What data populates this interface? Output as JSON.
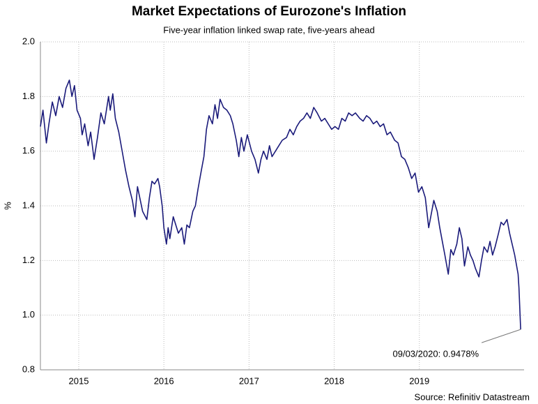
{
  "chart_data": {
    "type": "line",
    "title": "Market Expectations of Eurozone's Inflation",
    "subtitle": "Five-year inflation linked swap rate, five-years ahead",
    "y_label": "%",
    "source": "Source: Refinitiv Datastream",
    "annotation": "09/03/2020: 0.9478%",
    "grid": true,
    "xlim": [
      2014.55,
      2020.23
    ],
    "xticks": [
      2015,
      2016,
      2017,
      2018,
      2019
    ],
    "ylim": [
      0.8,
      2.0
    ],
    "yticks": [
      0.8,
      {
        "value": 1.0,
        "label": "1.0"
      },
      1.2,
      1.4,
      1.6,
      1.8,
      {
        "value": 2.0,
        "label": "2.0"
      }
    ],
    "series": [
      {
        "color": "#1a1a7a",
        "x": [
          2014.55,
          2014.58,
          2014.62,
          2014.65,
          2014.69,
          2014.73,
          2014.77,
          2014.81,
          2014.85,
          2014.89,
          2014.92,
          2014.95,
          2014.98,
          2015.02,
          2015.04,
          2015.07,
          2015.11,
          2015.14,
          2015.18,
          2015.22,
          2015.26,
          2015.3,
          2015.35,
          2015.37,
          2015.4,
          2015.43,
          2015.47,
          2015.51,
          2015.55,
          2015.59,
          2015.63,
          2015.66,
          2015.69,
          2015.71,
          2015.75,
          2015.8,
          2015.83,
          2015.86,
          2015.89,
          2015.93,
          2015.95,
          2015.98,
          2016.0,
          2016.03,
          2016.05,
          2016.07,
          2016.11,
          2016.14,
          2016.17,
          2016.21,
          2016.24,
          2016.27,
          2016.3,
          2016.34,
          2016.37,
          2016.4,
          2016.44,
          2016.47,
          2016.5,
          2016.53,
          2016.57,
          2016.6,
          2016.63,
          2016.66,
          2016.7,
          2016.74,
          2016.78,
          2016.81,
          2016.85,
          2016.88,
          2016.91,
          2016.94,
          2016.98,
          2017.03,
          2017.07,
          2017.11,
          2017.14,
          2017.17,
          2017.21,
          2017.24,
          2017.27,
          2017.31,
          2017.35,
          2017.39,
          2017.44,
          2017.48,
          2017.52,
          2017.56,
          2017.6,
          2017.64,
          2017.68,
          2017.72,
          2017.76,
          2017.8,
          2017.85,
          2017.89,
          2017.93,
          2017.97,
          2018.01,
          2018.05,
          2018.09,
          2018.13,
          2018.17,
          2018.21,
          2018.25,
          2018.3,
          2018.34,
          2018.38,
          2018.42,
          2018.46,
          2018.5,
          2018.54,
          2018.58,
          2018.62,
          2018.66,
          2018.71,
          2018.75,
          2018.79,
          2018.83,
          2018.87,
          2018.91,
          2018.95,
          2018.99,
          2019.03,
          2019.07,
          2019.11,
          2019.14,
          2019.17,
          2019.21,
          2019.24,
          2019.27,
          2019.3,
          2019.34,
          2019.37,
          2019.4,
          2019.44,
          2019.47,
          2019.5,
          2019.53,
          2019.57,
          2019.6,
          2019.63,
          2019.66,
          2019.7,
          2019.73,
          2019.76,
          2019.8,
          2019.83,
          2019.86,
          2019.89,
          2019.93,
          2019.96,
          2019.99,
          2020.03,
          2020.06,
          2020.09,
          2020.12,
          2020.16,
          2020.17,
          2020.19
        ],
        "values": [
          1.69,
          1.75,
          1.63,
          1.7,
          1.78,
          1.73,
          1.8,
          1.76,
          1.83,
          1.86,
          1.8,
          1.84,
          1.75,
          1.72,
          1.66,
          1.7,
          1.62,
          1.67,
          1.57,
          1.65,
          1.74,
          1.7,
          1.8,
          1.75,
          1.81,
          1.72,
          1.67,
          1.6,
          1.53,
          1.47,
          1.42,
          1.36,
          1.47,
          1.44,
          1.38,
          1.35,
          1.43,
          1.49,
          1.48,
          1.5,
          1.47,
          1.4,
          1.32,
          1.26,
          1.32,
          1.28,
          1.36,
          1.33,
          1.3,
          1.32,
          1.26,
          1.33,
          1.32,
          1.38,
          1.4,
          1.46,
          1.53,
          1.58,
          1.68,
          1.73,
          1.7,
          1.77,
          1.72,
          1.79,
          1.76,
          1.75,
          1.73,
          1.7,
          1.64,
          1.58,
          1.65,
          1.6,
          1.66,
          1.6,
          1.57,
          1.52,
          1.57,
          1.6,
          1.57,
          1.62,
          1.58,
          1.6,
          1.62,
          1.64,
          1.65,
          1.68,
          1.66,
          1.69,
          1.71,
          1.72,
          1.74,
          1.72,
          1.76,
          1.74,
          1.71,
          1.72,
          1.7,
          1.68,
          1.69,
          1.68,
          1.72,
          1.71,
          1.74,
          1.73,
          1.74,
          1.72,
          1.71,
          1.73,
          1.72,
          1.7,
          1.71,
          1.69,
          1.7,
          1.66,
          1.67,
          1.64,
          1.63,
          1.58,
          1.57,
          1.54,
          1.5,
          1.52,
          1.45,
          1.47,
          1.43,
          1.32,
          1.37,
          1.42,
          1.38,
          1.32,
          1.27,
          1.22,
          1.15,
          1.24,
          1.22,
          1.26,
          1.32,
          1.28,
          1.18,
          1.25,
          1.22,
          1.2,
          1.17,
          1.14,
          1.2,
          1.25,
          1.23,
          1.27,
          1.22,
          1.25,
          1.3,
          1.34,
          1.33,
          1.35,
          1.3,
          1.26,
          1.22,
          1.15,
          1.1,
          0.9478
        ]
      }
    ]
  }
}
